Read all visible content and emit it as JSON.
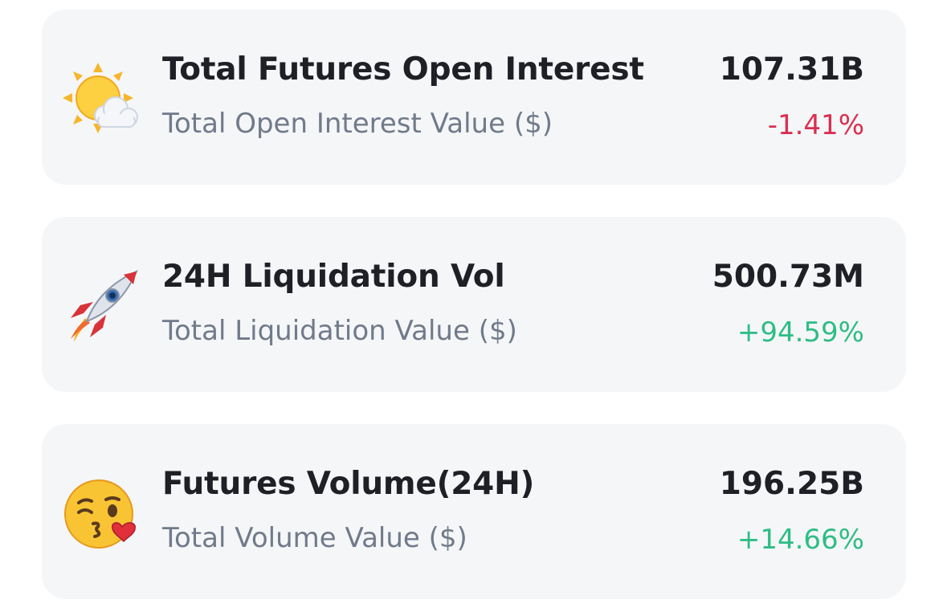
{
  "colors": {
    "negative": "#d9304f",
    "positive": "#2ebd85"
  },
  "stats": [
    {
      "icon": "sun-behind-cloud-icon",
      "title": "Total Futures Open Interest",
      "subtitle": "Total Open Interest Value ($)",
      "value": "107.31B",
      "change": "-1.41%",
      "trend": "negative"
    },
    {
      "icon": "rocket-icon",
      "title": "24H Liquidation Vol",
      "subtitle": "Total Liquidation Value ($)",
      "value": "500.73M",
      "change": "+94.59%",
      "trend": "positive"
    },
    {
      "icon": "face-blowing-kiss-icon",
      "title": "Futures Volume(24H)",
      "subtitle": "Total Volume Value ($)",
      "value": "196.25B",
      "change": "+14.66%",
      "trend": "positive"
    }
  ]
}
